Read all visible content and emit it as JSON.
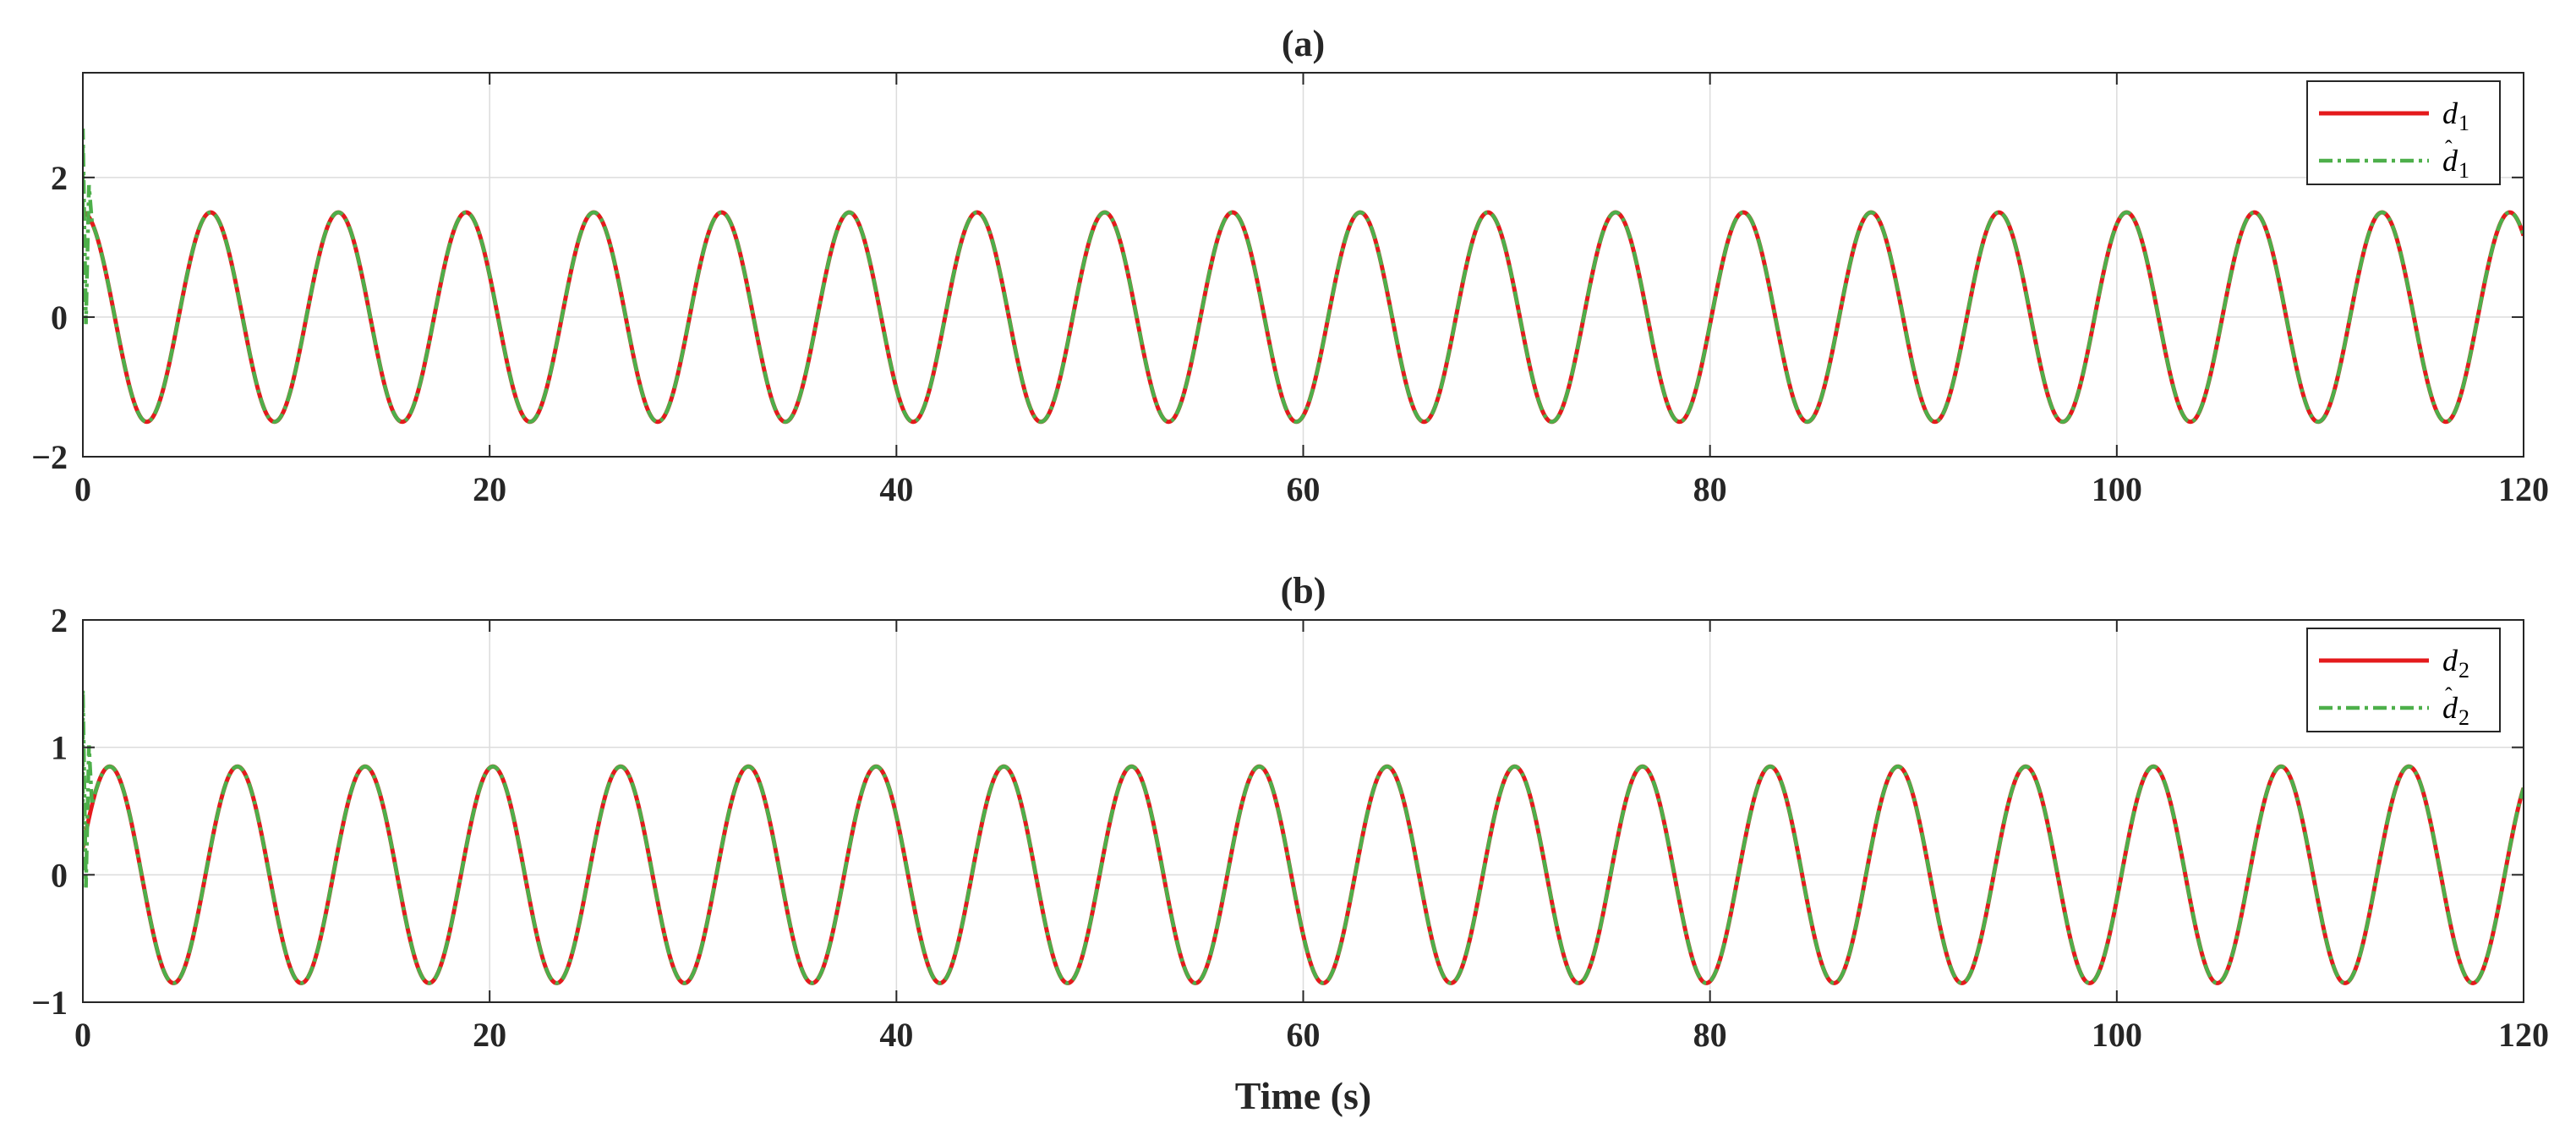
{
  "chart_data": [
    {
      "type": "line",
      "title": "(a)",
      "xlabel": "",
      "ylabel": "",
      "xlim": [
        0,
        120
      ],
      "ylim": [
        -2,
        3.5
      ],
      "xticks": [
        "0",
        "20",
        "40",
        "60",
        "80",
        "100",
        "120"
      ],
      "yticks": [
        "2",
        "0",
        "−2"
      ],
      "grid": true,
      "legend_position": "top-right",
      "series": [
        {
          "name": "d",
          "subscript": "1",
          "hat": false,
          "color": "#e41a1c",
          "style": "solid",
          "function": "sine",
          "amplitude": 1.5,
          "period_s": 6.28,
          "phase_rad": 1.5708,
          "initial_spike": 0
        },
        {
          "name": "d",
          "subscript": "1",
          "hat": true,
          "color": "#4daf4a",
          "style": "dash-dot",
          "function": "sine",
          "amplitude": 1.5,
          "period_s": 6.28,
          "phase_rad": 1.5708,
          "initial_spike": 2.7
        }
      ]
    },
    {
      "type": "line",
      "title": "(b)",
      "xlabel": "Time (s)",
      "ylabel": "",
      "xlim": [
        0,
        120
      ],
      "ylim": [
        -1,
        2
      ],
      "xticks": [
        "0",
        "20",
        "40",
        "60",
        "80",
        "100",
        "120"
      ],
      "yticks": [
        "2",
        "1",
        "0",
        "−1"
      ],
      "grid": true,
      "legend_position": "top-right",
      "series": [
        {
          "name": "d",
          "subscript": "2",
          "hat": false,
          "color": "#e41a1c",
          "style": "solid",
          "function": "sine",
          "amplitude": 0.85,
          "period_s": 6.28,
          "phase_rad": 0.25,
          "initial_spike": 0
        },
        {
          "name": "d",
          "subscript": "2",
          "hat": true,
          "color": "#4daf4a",
          "style": "dash-dot",
          "function": "sine",
          "amplitude": 0.85,
          "period_s": 6.28,
          "phase_rad": 0.25,
          "initial_spike": 1.45
        }
      ]
    }
  ]
}
